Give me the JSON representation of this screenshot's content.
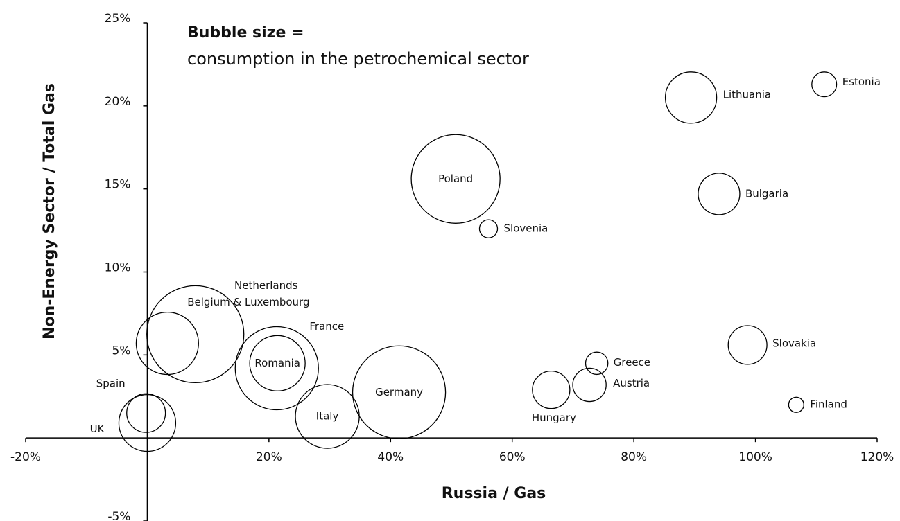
{
  "chart_data": {
    "type": "bubble",
    "annotation_title": "Bubble size =",
    "annotation": "consumption in the petrochemical sector",
    "xlabel": "Russia / Gas",
    "ylabel": "Non-Energy Sector / Total Gas",
    "labels": [
      "Poland",
      "Slovenia",
      "Lithuania",
      "Estonia",
      "Bulgaria",
      "Slovakia",
      "Finland",
      "Greece",
      "Austria",
      "Hungary",
      "Germany",
      "Italy",
      "Romania",
      "France",
      "Netherlands",
      "Belgium & Luxembourg",
      "Spain",
      "UK"
    ],
    "x": [
      50.7,
      56.1,
      89.4,
      111.3,
      94.0,
      98.7,
      106.7,
      73.9,
      72.7,
      66.4,
      41.4,
      29.6,
      21.4,
      21.3,
      7.9,
      3.3,
      -0.2,
      0
    ],
    "y": [
      15.6,
      12.6,
      20.5,
      21.3,
      14.7,
      5.6,
      2.0,
      4.5,
      3.2,
      2.9,
      2.75,
      1.3,
      4.5,
      4.2,
      6.25,
      5.7,
      1.5,
      0.9
    ],
    "sizes": [
      410,
      17,
      137,
      32,
      90,
      78,
      12,
      26,
      58,
      73,
      449,
      212,
      160,
      360,
      490,
      202,
      78,
      168
    ],
    "color": "#000000",
    "xlim": [
      -20,
      120
    ],
    "xticks": [
      {
        "value": -20,
        "label": "-20%"
      },
      {
        "value": 20,
        "label": "20%"
      },
      {
        "value": 40,
        "label": "40%"
      },
      {
        "value": 60,
        "label": "60%"
      },
      {
        "value": 80,
        "label": "80%"
      },
      {
        "value": 100,
        "label": "100%"
      },
      {
        "value": 120,
        "label": "120%"
      }
    ],
    "ylim": [
      -5,
      25
    ],
    "yticks": [
      {
        "value": 25,
        "label": "25%"
      },
      {
        "value": 20,
        "label": "20%"
      },
      {
        "value": 15,
        "label": "15%"
      },
      {
        "value": 10,
        "label": "10%"
      },
      {
        "value": 5,
        "label": "5%"
      },
      {
        "value": -5,
        "label": "-5%"
      }
    ]
  }
}
